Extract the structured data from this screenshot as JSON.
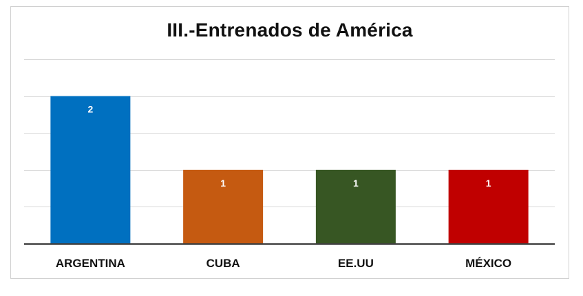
{
  "chart_data": {
    "type": "bar",
    "title": "III.-Entrenados de América",
    "categories": [
      "ARGENTINA",
      "CUBA",
      "EE.UU",
      "MÉXICO"
    ],
    "values": [
      2,
      1,
      1,
      1
    ],
    "colors": [
      "#0070C0",
      "#C55A11",
      "#375623",
      "#C00000"
    ],
    "ylim": [
      0,
      2.5
    ],
    "grid_step": 0.5,
    "grid": true,
    "y_axis_labels": false,
    "data_labels": true,
    "xlabel": "",
    "ylabel": ""
  }
}
